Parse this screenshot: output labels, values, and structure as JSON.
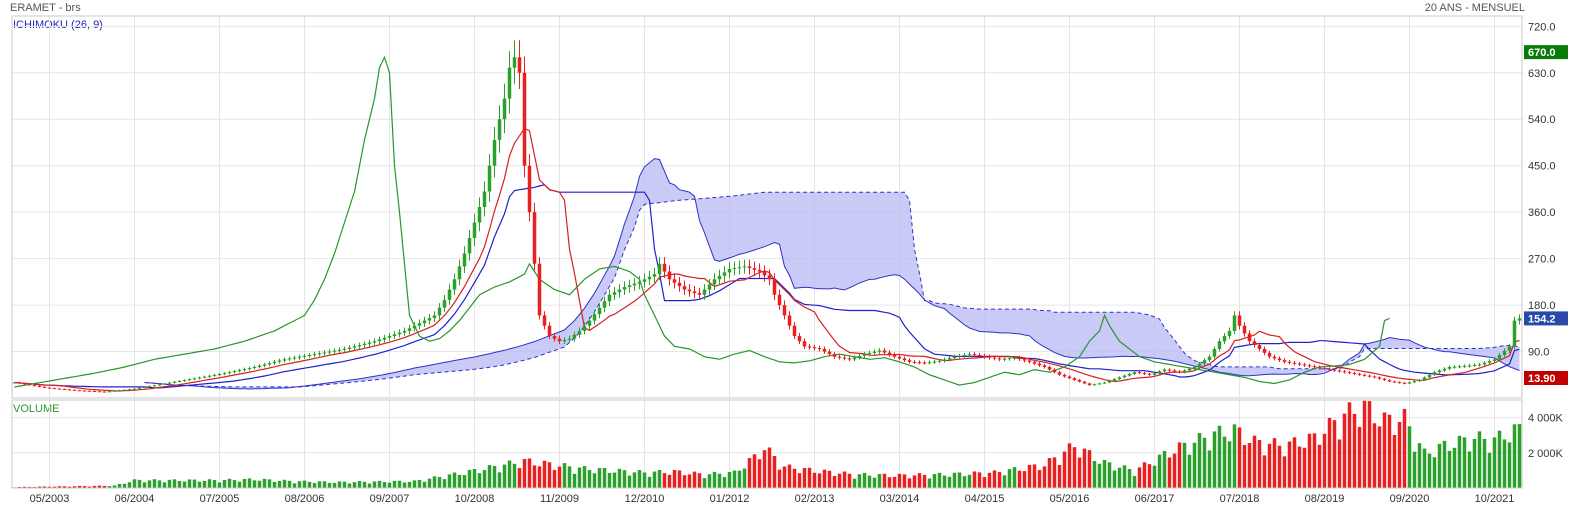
{
  "header": {
    "title": "ERAMET - brs",
    "period": "20 ANS - MENSUEL"
  },
  "panels": {
    "price_label": "ICHIMOKU (26, 9)",
    "volume_label": "VOLUME"
  },
  "colors": {
    "up": "#2ca02c",
    "down": "#e82020",
    "tenkan": "#d62020",
    "kijun": "#2020d0",
    "chikou": "#2a962a",
    "cloud": "#b8b8f4",
    "cloud_edge": "#3030c8"
  },
  "badges": {
    "high": "670.0",
    "last": "154.2",
    "low": "13.90"
  },
  "chart_data": {
    "type": "candlestick",
    "price_axis": {
      "ticks": [
        "720.0",
        "630.0",
        "540.0",
        "450.0",
        "360.0",
        "270.0",
        "180.0",
        "90.0"
      ],
      "ylim": [
        0,
        740
      ]
    },
    "volume_axis": {
      "ticks": [
        "4 000K",
        "2 000K"
      ],
      "ylim": [
        0,
        5000
      ]
    },
    "x_labels": [
      "05/2003",
      "06/2004",
      "07/2005",
      "08/2006",
      "09/2007",
      "10/2008",
      "11/2009",
      "12/2010",
      "01/2012",
      "02/2013",
      "03/2014",
      "04/2015",
      "05/2016",
      "06/2017",
      "07/2018",
      "08/2019",
      "09/2020",
      "10/2021"
    ],
    "close_anchors": [
      [
        0,
        30
      ],
      [
        6,
        20
      ],
      [
        12,
        15
      ],
      [
        18,
        12
      ],
      [
        24,
        18
      ],
      [
        30,
        28
      ],
      [
        36,
        38
      ],
      [
        42,
        48
      ],
      [
        48,
        60
      ],
      [
        54,
        75
      ],
      [
        60,
        85
      ],
      [
        66,
        95
      ],
      [
        72,
        110
      ],
      [
        78,
        130
      ],
      [
        84,
        160
      ],
      [
        86,
        190
      ],
      [
        88,
        230
      ],
      [
        90,
        280
      ],
      [
        92,
        340
      ],
      [
        94,
        400
      ],
      [
        96,
        500
      ],
      [
        98,
        580
      ],
      [
        99,
        640
      ],
      [
        100,
        660
      ],
      [
        101,
        630
      ],
      [
        102,
        450
      ],
      [
        103,
        360
      ],
      [
        104,
        260
      ],
      [
        105,
        160
      ],
      [
        107,
        120
      ],
      [
        109,
        110
      ],
      [
        111,
        115
      ],
      [
        113,
        130
      ],
      [
        115,
        150
      ],
      [
        117,
        175
      ],
      [
        119,
        200
      ],
      [
        122,
        215
      ],
      [
        125,
        225
      ],
      [
        128,
        240
      ],
      [
        129,
        260
      ],
      [
        131,
        230
      ],
      [
        134,
        210
      ],
      [
        137,
        200
      ],
      [
        140,
        230
      ],
      [
        143,
        250
      ],
      [
        146,
        255
      ],
      [
        149,
        245
      ],
      [
        151,
        230
      ],
      [
        152,
        200
      ],
      [
        154,
        160
      ],
      [
        156,
        120
      ],
      [
        158,
        100
      ],
      [
        161,
        95
      ],
      [
        164,
        80
      ],
      [
        167,
        75
      ],
      [
        170,
        85
      ],
      [
        173,
        92
      ],
      [
        176,
        80
      ],
      [
        179,
        70
      ],
      [
        182,
        68
      ],
      [
        185,
        72
      ],
      [
        188,
        80
      ],
      [
        191,
        85
      ],
      [
        194,
        80
      ],
      [
        197,
        75
      ],
      [
        200,
        78
      ],
      [
        203,
        70
      ],
      [
        206,
        60
      ],
      [
        209,
        45
      ],
      [
        212,
        35
      ],
      [
        215,
        25
      ],
      [
        218,
        30
      ],
      [
        221,
        40
      ],
      [
        224,
        50
      ],
      [
        227,
        45
      ],
      [
        230,
        55
      ],
      [
        233,
        50
      ],
      [
        236,
        60
      ],
      [
        239,
        80
      ],
      [
        241,
        110
      ],
      [
        243,
        130
      ],
      [
        244,
        160
      ],
      [
        245,
        140
      ],
      [
        247,
        110
      ],
      [
        249,
        95
      ],
      [
        251,
        80
      ],
      [
        254,
        70
      ],
      [
        257,
        65
      ],
      [
        260,
        60
      ],
      [
        263,
        55
      ],
      [
        266,
        50
      ],
      [
        269,
        45
      ],
      [
        272,
        40
      ],
      [
        275,
        32
      ],
      [
        278,
        28
      ],
      [
        281,
        35
      ],
      [
        284,
        50
      ],
      [
        287,
        60
      ],
      [
        290,
        62
      ],
      [
        293,
        65
      ],
      [
        296,
        75
      ],
      [
        299,
        100
      ],
      [
        300,
        150
      ],
      [
        301,
        154.2
      ]
    ],
    "volume_anchors": [
      [
        0,
        50
      ],
      [
        20,
        120
      ],
      [
        24,
        400
      ],
      [
        40,
        400
      ],
      [
        48,
        450
      ],
      [
        56,
        350
      ],
      [
        64,
        300
      ],
      [
        80,
        350
      ],
      [
        90,
        800
      ],
      [
        96,
        1100
      ],
      [
        102,
        1400
      ],
      [
        108,
        1200
      ],
      [
        114,
        1000
      ],
      [
        120,
        900
      ],
      [
        126,
        800
      ],
      [
        132,
        850
      ],
      [
        138,
        700
      ],
      [
        144,
        800
      ],
      [
        148,
        1600
      ],
      [
        150,
        2100
      ],
      [
        154,
        1100
      ],
      [
        160,
        900
      ],
      [
        168,
        700
      ],
      [
        176,
        650
      ],
      [
        186,
        700
      ],
      [
        196,
        800
      ],
      [
        206,
        1200
      ],
      [
        212,
        2200
      ],
      [
        218,
        1300
      ],
      [
        224,
        900
      ],
      [
        232,
        2000
      ],
      [
        240,
        2800
      ],
      [
        244,
        3000
      ],
      [
        248,
        2400
      ],
      [
        254,
        2200
      ],
      [
        260,
        2600
      ],
      [
        266,
        3800
      ],
      [
        270,
        4200
      ],
      [
        274,
        3500
      ],
      [
        278,
        3600
      ],
      [
        282,
        1800
      ],
      [
        286,
        2200
      ],
      [
        292,
        2600
      ],
      [
        296,
        2500
      ],
      [
        300,
        3000
      ]
    ],
    "high": 670.0,
    "low": 13.9,
    "last": 154.2
  }
}
